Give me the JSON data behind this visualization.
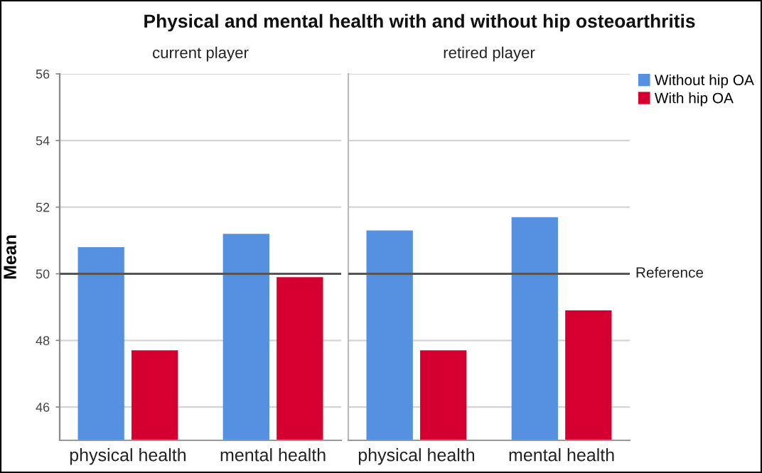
{
  "chart_data": [
    {
      "type": "bar",
      "title": "Physical and mental health with and without hip osteoarthritis",
      "subtitle": "current player",
      "ylabel": "Mean",
      "categories": [
        "physical health",
        "mental health"
      ],
      "series": [
        {
          "color": "#5591e0",
          "values": [
            50.8,
            51.2
          ]
        },
        {
          "color": "#d5002f",
          "values": [
            47.7,
            49.9
          ]
        }
      ],
      "ylim": [
        45,
        56
      ],
      "yticks": [
        46,
        48,
        50,
        52,
        54,
        56
      ],
      "grid": "y",
      "ref_lines": [
        {
          "axis": "y",
          "value": 50,
          "color": "#555555"
        }
      ]
    },
    {
      "type": "bar",
      "subtitle": "retired player",
      "categories": [
        "physical health",
        "mental health"
      ],
      "series": [
        {
          "name": "Without hip OA",
          "color": "#5591e0",
          "values": [
            51.3,
            51.7
          ]
        },
        {
          "name": "With hip OA",
          "color": "#d5002f",
          "values": [
            47.7,
            48.9
          ]
        }
      ],
      "ylim": [
        45,
        56
      ],
      "yticks": [
        46,
        48,
        50,
        52,
        54,
        56
      ],
      "tick_labels": "x",
      "grid": "y",
      "legend": "top right",
      "ref_lines": [
        {
          "axis": "y",
          "value": 50,
          "label": "Reference",
          "color": "#555555"
        }
      ]
    }
  ]
}
